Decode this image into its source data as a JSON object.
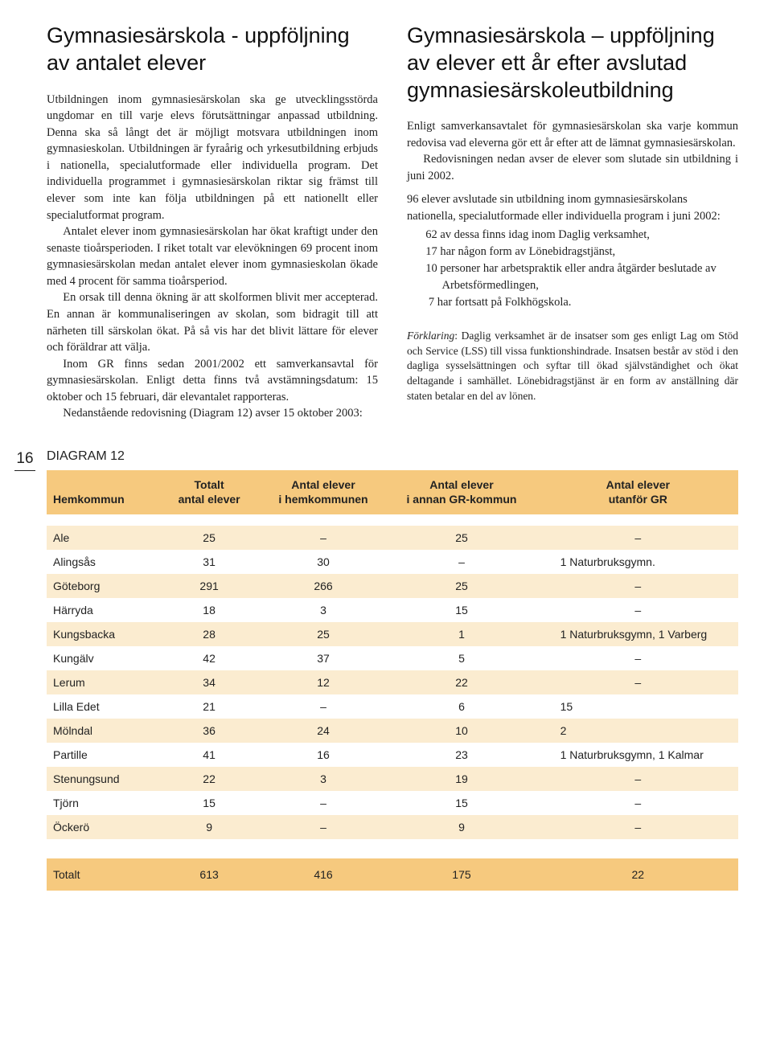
{
  "page_number": "16",
  "left": {
    "title": "Gymnasiesärskola - uppföljning av antalet elever",
    "paragraphs": [
      "Utbildningen inom gymnasiesärskolan ska ge utvecklingsstörda ungdomar en till varje elevs förutsättningar anpassad utbildning. Denna ska så långt det är möjligt motsvara utbildningen inom gymnasieskolan. Utbildningen är fyraårig och yrkesutbildning erbjuds i nationella, specialutformade eller individuella program. Det individuella programmet i gymnasiesärskolan riktar sig främst till elever som inte kan följa utbildningen på ett nationellt eller specialutformat program.",
      "Antalet elever inom gymnasiesärskolan har ökat kraftigt under den senaste tioårsperioden. I riket totalt var elevökningen 69 procent inom gymnasiesärskolan medan antalet elever inom gymnasieskolan ökade med 4 procent för samma tioårsperiod.",
      "En orsak till denna ökning är att skolformen blivit mer accepterad. En annan är kommunaliseringen av skolan, som bidragit till att närheten till särskolan ökat. På så vis har det blivit lättare för elever och föräldrar att välja.",
      "Inom GR finns sedan 2001/2002 ett samverkansavtal för gymnasiesärskolan. Enligt detta finns två avstämningsdatum: 15 oktober och 15 februari, där elevantalet rapporteras.",
      "Nedanstående redovisning (Diagram 12) avser 15 oktober 2003:"
    ]
  },
  "right": {
    "title": "Gymnasiesärskola – uppföljning av elever ett år efter avslutad gymnasiesärskoleutbildning",
    "paragraphs": [
      "Enligt samverkansavtalet för gymnasiesärskolan ska varje kommun redovisa vad eleverna gör ett år efter att de lämnat gymnasiesärskolan.",
      "Redovisningen nedan avser de elever som slutade sin utbildning i juni 2002."
    ],
    "list_intro": "96 elever avslutade sin utbildning inom gymnasiesärskolans nationella, specialutformade eller individuella program i juni 2002:",
    "list_items": [
      "62 av dessa finns idag inom Daglig verksamhet,",
      "17 har någon form av Lönebidragstjänst,",
      "10 personer har arbetspraktik eller andra åtgärder beslutade av Arbetsförmedlingen,",
      " 7 har fortsatt på Folkhögskola."
    ],
    "explain_label": "Förklaring",
    "explain_text": ": Daglig verksamhet är de insatser som ges enligt Lag om Stöd och Service (LSS) till vissa funktionshindrade. Insatsen består av stöd i den dagliga sysselsättningen och syftar till ökad självständighet och ökat deltagande i samhället. Lönebidragstjänst är en form av anställning där staten betalar en del av lönen."
  },
  "diagram": {
    "label": "DIAGRAM 12",
    "header_bg": "#f6c97e",
    "band_bg": "#fbecd0",
    "columns": [
      "Hemkommun",
      "Totalt\nantal elever",
      "Antal elever\ni hemkommunen",
      "Antal elever\ni annan GR-kommun",
      "Antal elever\nutanför GR"
    ],
    "rows": [
      [
        "Ale",
        "25",
        "–",
        "25",
        "–"
      ],
      [
        "Alingsås",
        "31",
        "30",
        "–",
        "1 Naturbruksgymn."
      ],
      [
        "Göteborg",
        "291",
        "266",
        "25",
        "–"
      ],
      [
        "Härryda",
        "18",
        "3",
        "15",
        "–"
      ],
      [
        "Kungsbacka",
        "28",
        "25",
        "1",
        "1 Naturbruksgymn, 1 Varberg"
      ],
      [
        "Kungälv",
        "42",
        "37",
        "5",
        "–"
      ],
      [
        "Lerum",
        "34",
        "12",
        "22",
        "–"
      ],
      [
        "Lilla Edet",
        "21",
        "–",
        "6",
        "15"
      ],
      [
        "Mölndal",
        "36",
        "24",
        "10",
        "2"
      ],
      [
        "Partille",
        "41",
        "16",
        "23",
        "1 Naturbruksgymn, 1 Kalmar"
      ],
      [
        "Stenungsund",
        "22",
        "3",
        "19",
        "–"
      ],
      [
        "Tjörn",
        "15",
        "–",
        "15",
        "–"
      ],
      [
        "Öckerö",
        "9",
        "–",
        "9",
        "–"
      ]
    ],
    "footer": [
      "Totalt",
      "613",
      "416",
      "175",
      "22"
    ]
  }
}
